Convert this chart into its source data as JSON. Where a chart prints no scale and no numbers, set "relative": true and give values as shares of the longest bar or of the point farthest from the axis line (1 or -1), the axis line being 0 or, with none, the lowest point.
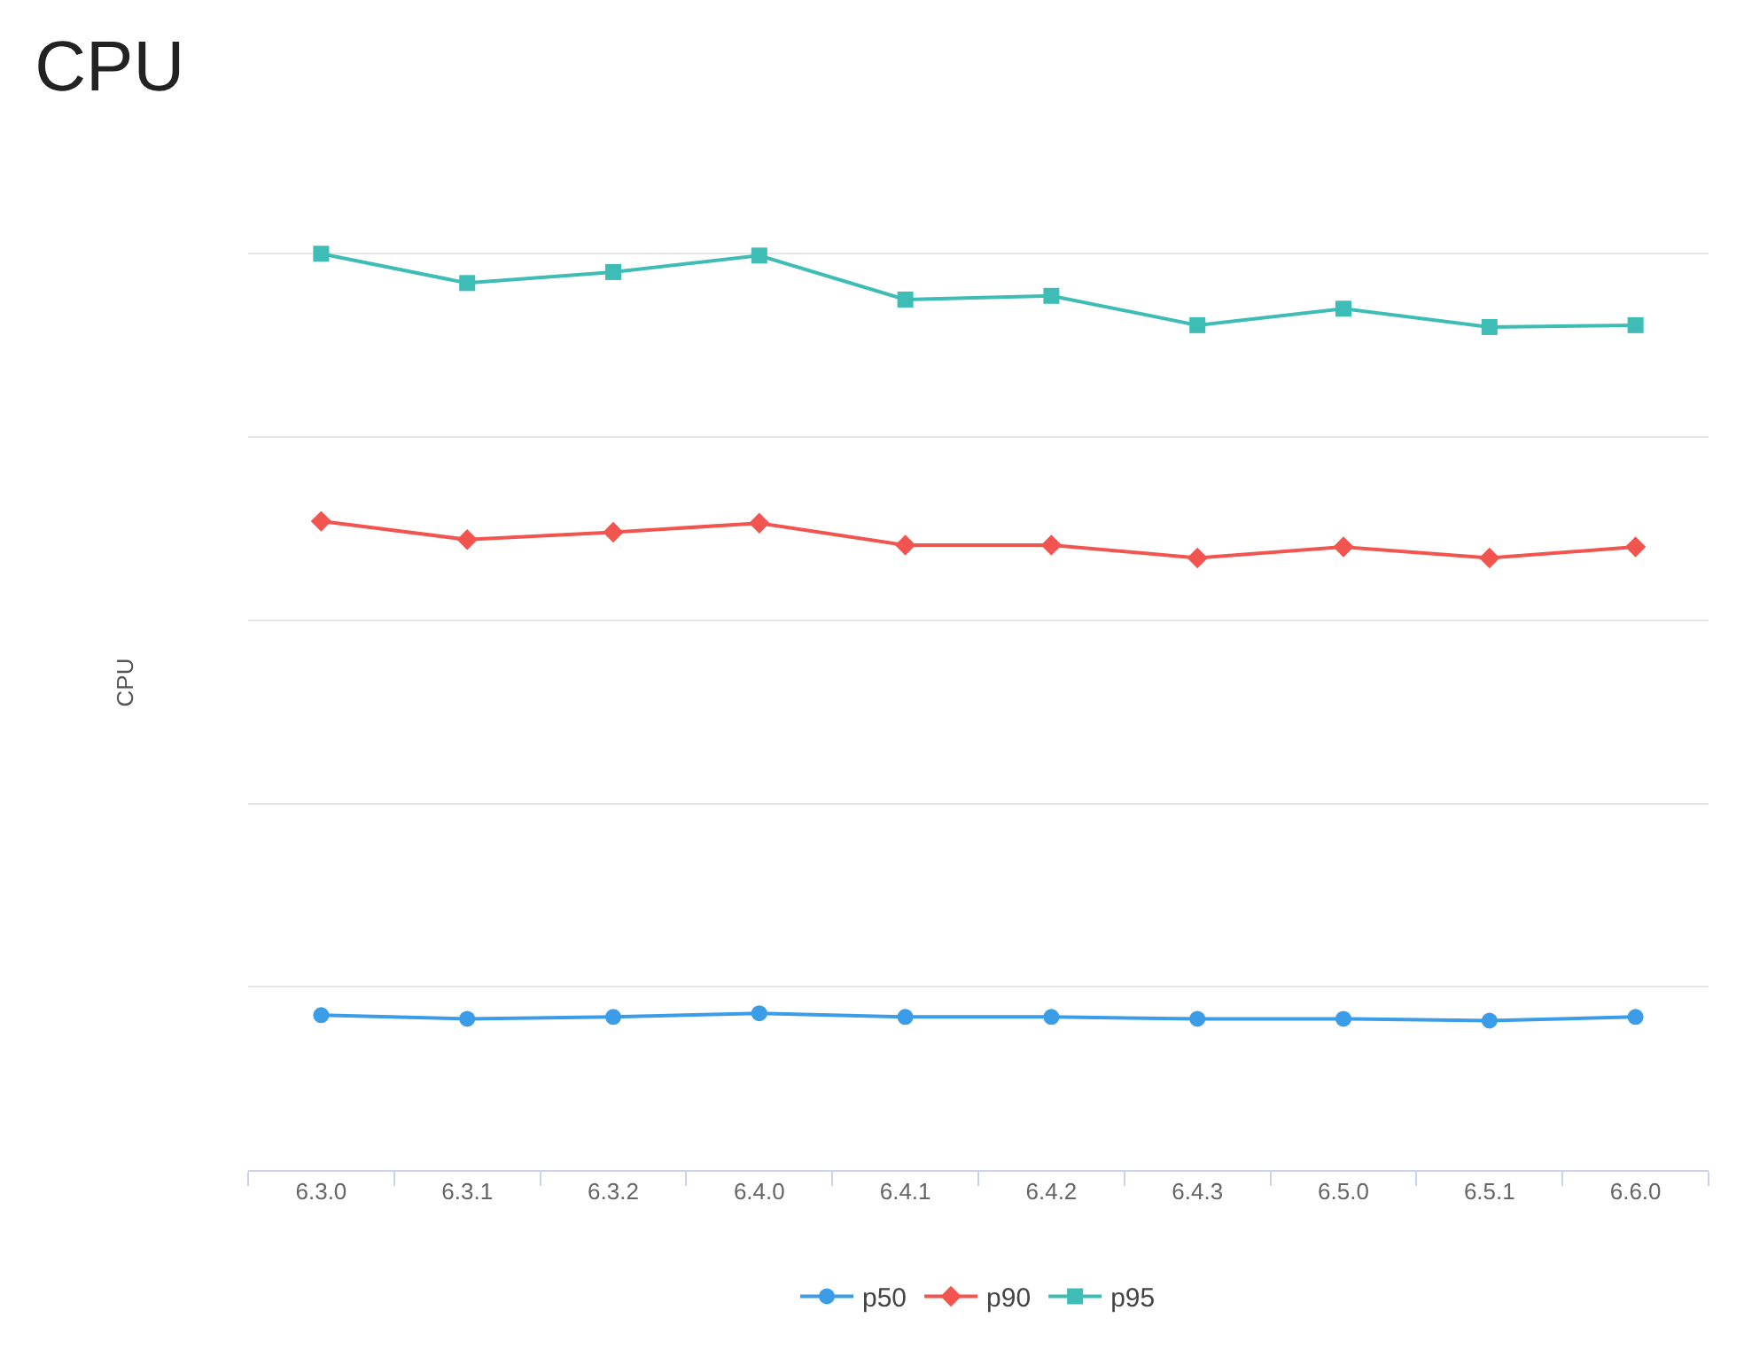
{
  "chart_data": {
    "type": "line",
    "title": "CPU",
    "ylabel": "CPU",
    "relative": true,
    "grid": "y",
    "legend": "bottom",
    "line_style": "solid",
    "categories": [
      "6.3.0",
      "6.3.1",
      "6.3.2",
      "6.4.0",
      "6.4.1",
      "6.4.2",
      "6.4.3",
      "6.5.0",
      "6.5.1",
      "6.6.0"
    ],
    "series": [
      {
        "name": "p50",
        "color": "#3b9ce8",
        "marker": "circle",
        "values": [
          0.169,
          0.165,
          0.167,
          0.171,
          0.167,
          0.167,
          0.165,
          0.165,
          0.163,
          0.167
        ]
      },
      {
        "name": "p90",
        "color": "#f2544f",
        "marker": "diamond",
        "values": [
          0.708,
          0.688,
          0.696,
          0.706,
          0.682,
          0.682,
          0.668,
          0.68,
          0.668,
          0.68
        ]
      },
      {
        "name": "p95",
        "color": "#3dbdb5",
        "marker": "square",
        "values": [
          1,
          0.968,
          0.98,
          0.998,
          0.95,
          0.954,
          0.922,
          0.94,
          0.92,
          0.922
        ]
      }
    ]
  }
}
